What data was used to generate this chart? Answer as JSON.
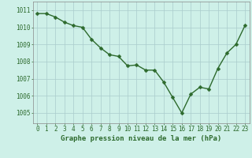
{
  "hours": [
    0,
    1,
    2,
    3,
    4,
    5,
    6,
    7,
    8,
    9,
    10,
    11,
    12,
    13,
    14,
    15,
    16,
    17,
    18,
    19,
    20,
    21,
    22,
    23
  ],
  "pressure": [
    1010.8,
    1010.8,
    1010.6,
    1010.3,
    1010.1,
    1010.0,
    1009.3,
    1008.8,
    1008.4,
    1008.3,
    1007.75,
    1007.8,
    1007.5,
    1007.5,
    1006.8,
    1005.9,
    1005.0,
    1006.1,
    1006.5,
    1006.4,
    1007.6,
    1008.5,
    1009.0,
    1010.1
  ],
  "line_color": "#2d6a2d",
  "marker_color": "#2d6a2d",
  "bg_color": "#cef0e8",
  "grid_color": "#aacccc",
  "ylabel_ticks": [
    1005,
    1006,
    1007,
    1008,
    1009,
    1010,
    1011
  ],
  "xlabel_label": "Graphe pression niveau de la mer (hPa)",
  "ylim": [
    1004.4,
    1011.5
  ],
  "xlim": [
    -0.5,
    23.5
  ],
  "tick_fontsize": 5.5,
  "label_fontsize": 6.5,
  "line_width": 1.0,
  "marker_size": 2.5
}
